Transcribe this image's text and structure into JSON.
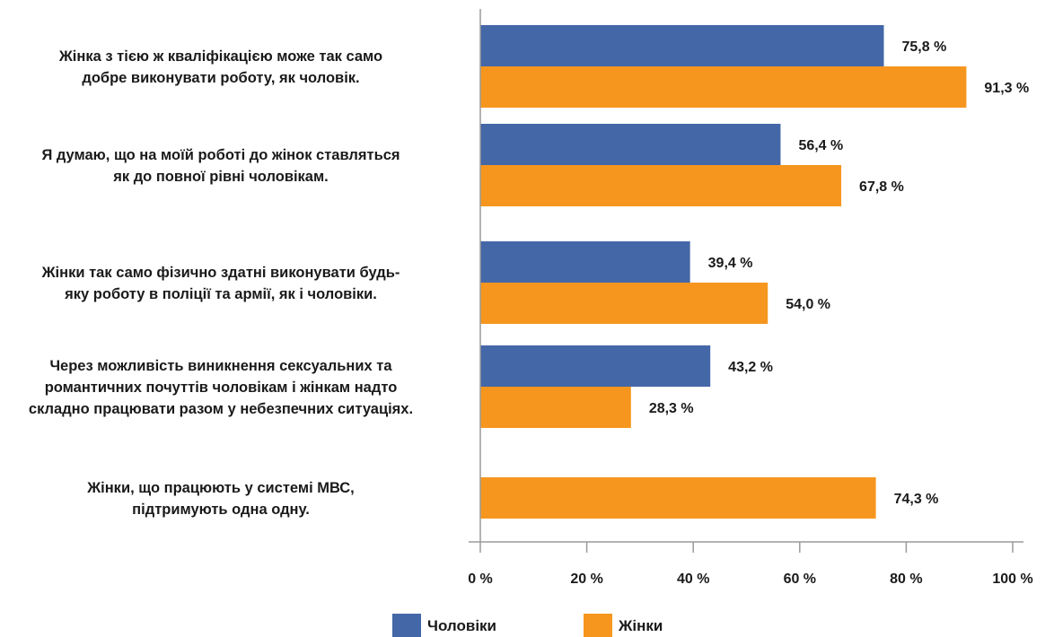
{
  "chart_data": {
    "type": "bar",
    "orientation": "horizontal",
    "categories": [
      [
        "Жінка з тією ж кваліфікацією може так само",
        "добре виконувати роботу, як чоловік."
      ],
      [
        "Я думаю, що на моїй роботі до жінок ставляться",
        "як до повної рівні чоловікам."
      ],
      [
        "Жінки так само фізично здатні виконувати будь-",
        "яку роботу в поліції та армії, як і чоловіки."
      ],
      [
        "Через можливість виникнення сексуальних та",
        "романтичних почуттів чоловікам і жінкам надто",
        "складно працювати разом у небезпечних ситуаціях."
      ],
      [
        "Жінки, що працюють у системі МВС,",
        "підтримують одна одну."
      ]
    ],
    "series": [
      {
        "name": "Чоловіки",
        "color": "#4467a8",
        "values": [
          75.8,
          56.4,
          39.4,
          43.2,
          null
        ],
        "labels": [
          "75,8 %",
          "56,4 %",
          "39,4 %",
          "43,2 %",
          ""
        ]
      },
      {
        "name": "Жінки",
        "color": "#f6961e",
        "values": [
          91.3,
          67.8,
          54.0,
          28.3,
          74.3
        ],
        "labels": [
          "91,3 %",
          "67,8 %",
          "54,0 %",
          "28,3 %",
          "74,3 %"
        ]
      }
    ],
    "xlim": [
      0,
      100
    ],
    "xticks": [
      0,
      20,
      40,
      60,
      80,
      100
    ],
    "xtick_labels": [
      "0 %",
      "20 %",
      "40 %",
      "60 %",
      "80 %",
      "100 %"
    ],
    "grid": false,
    "legend_position": "bottom"
  }
}
